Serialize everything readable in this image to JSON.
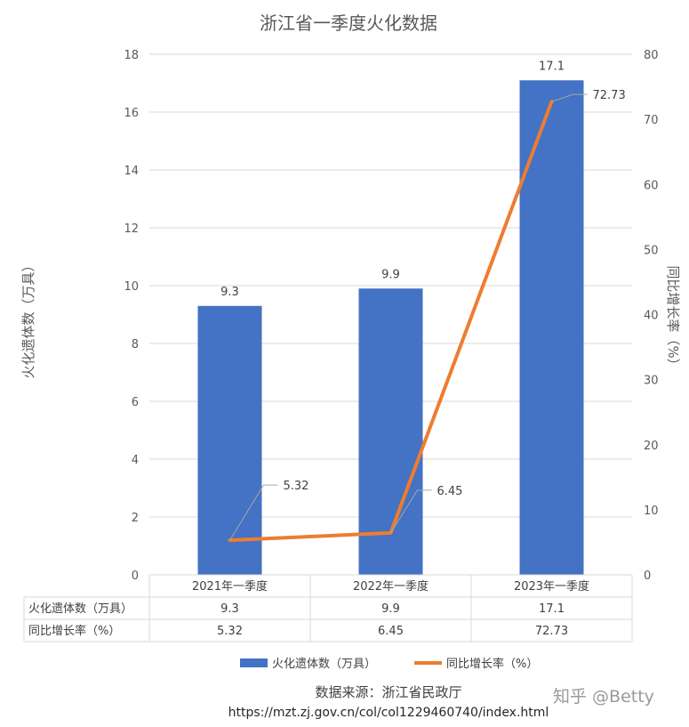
{
  "chart_data": {
    "type": "bar",
    "title": "浙江省一季度火化数据",
    "categories": [
      "2021年一季度",
      "2022年一季度",
      "2023年一季度"
    ],
    "series": [
      {
        "name": "火化遗体数（万具）",
        "type": "bar",
        "axis": "left",
        "values": [
          9.3,
          9.9,
          17.1
        ],
        "labels": [
          "9.3",
          "9.9",
          "17.1"
        ],
        "color": "#4472C4"
      },
      {
        "name": "同比增长率（%）",
        "type": "line",
        "axis": "right",
        "values": [
          5.32,
          6.45,
          72.73
        ],
        "labels": [
          "5.32",
          "6.45",
          "72.73"
        ],
        "color": "#ED7D31"
      }
    ],
    "ylabel": "火化遗体数（万具）",
    "y2label": "同比增长率（%）",
    "ylim": [
      0,
      18
    ],
    "y2lim": [
      0,
      80
    ],
    "yticks": [
      "0",
      "2",
      "4",
      "6",
      "8",
      "10",
      "12",
      "14",
      "16",
      "18"
    ],
    "y2ticks": [
      "0",
      "10",
      "20",
      "30",
      "40",
      "50",
      "60",
      "70",
      "80"
    ],
    "grid": true,
    "legend_position": "bottom",
    "data_table": {
      "rows": [
        {
          "label": "火化遗体数（万具）",
          "values": [
            "9.3",
            "9.9",
            "17.1"
          ]
        },
        {
          "label": "同比增长率（%）",
          "values": [
            "5.32",
            "6.45",
            "72.73"
          ]
        }
      ]
    },
    "source_label": "数据来源：浙江省民政厅",
    "source_url": "https://mzt.zj.gov.cn/col/col1229460740/index.html"
  },
  "watermark": "知乎 @Betty",
  "colors": {
    "bar": "#4472C4",
    "line": "#ED7D31",
    "grid": "#D9D9D9",
    "text": "#595959"
  }
}
